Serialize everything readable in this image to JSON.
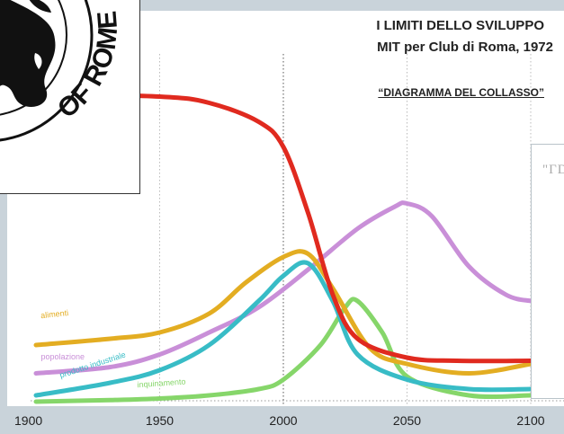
{
  "header": {
    "title": "I LIMITI DELLO SVILUPPO",
    "subtitle": "MIT per Club di Roma, 1972",
    "diagram_title": "“DIAGRAMMA DEL COLLASSO”"
  },
  "logo": {
    "text": "OF ROME"
  },
  "inset": {
    "text": "\"ΓD"
  },
  "colors": {
    "grafico_bg": "#ffffff",
    "risorse": "#e02a1f",
    "popolazione": "#c98fd8",
    "alimenti": "#e3ad22",
    "produzione": "#38bcc6",
    "inquinamento": "#86d66a"
  },
  "chart_data": {
    "type": "line",
    "title": "“DIAGRAMMA DEL COLLASSO”",
    "xlabel": "",
    "ylabel": "",
    "xlim": [
      1900,
      2100
    ],
    "ylim": [
      0,
      1
    ],
    "xticks": [
      1900,
      1950,
      2000,
      2050,
      2100
    ],
    "xtick_labels": [
      "1900",
      "1950",
      "2000",
      "2050",
      "2100"
    ],
    "grid": "vertical dotted at each tick",
    "series": [
      {
        "name": "",
        "color": "#e02a1f",
        "x": [
          1900,
          1950,
          1970,
          1990,
          2000,
          2010,
          2020,
          2030,
          2050,
          2070,
          2100
        ],
        "y": [
          0.96,
          0.95,
          0.93,
          0.87,
          0.79,
          0.58,
          0.32,
          0.18,
          0.12,
          0.11,
          0.11
        ]
      },
      {
        "name": "popolazione",
        "color": "#c98fd8",
        "x": [
          1900,
          1930,
          1950,
          1970,
          1990,
          2010,
          2030,
          2045,
          2050,
          2060,
          2075,
          2090,
          2100
        ],
        "y": [
          0.07,
          0.09,
          0.13,
          0.2,
          0.28,
          0.4,
          0.53,
          0.6,
          0.61,
          0.57,
          0.41,
          0.32,
          0.3
        ]
      },
      {
        "name": "alimenti",
        "color": "#e3ad22",
        "x": [
          1900,
          1930,
          1950,
          1970,
          1985,
          2000,
          2010,
          2020,
          2035,
          2050,
          2075,
          2100
        ],
        "y": [
          0.16,
          0.18,
          0.2,
          0.26,
          0.36,
          0.44,
          0.45,
          0.34,
          0.15,
          0.1,
          0.07,
          0.1
        ]
      },
      {
        "name": "prodotto industriale",
        "color": "#38bcc6",
        "x": [
          1900,
          1930,
          1950,
          1970,
          1990,
          2000,
          2010,
          2020,
          2030,
          2050,
          2075,
          2100
        ],
        "y": [
          0.0,
          0.04,
          0.08,
          0.16,
          0.3,
          0.38,
          0.42,
          0.3,
          0.13,
          0.05,
          0.02,
          0.02
        ]
      },
      {
        "name": "inquinamento",
        "color": "#86d66a",
        "x": [
          1900,
          1930,
          1950,
          1970,
          1990,
          2000,
          2015,
          2025,
          2030,
          2040,
          2050,
          2075,
          2100
        ],
        "y": [
          -0.02,
          -0.015,
          -0.01,
          0.0,
          0.02,
          0.05,
          0.16,
          0.28,
          0.3,
          0.2,
          0.06,
          0.0,
          0.0
        ]
      }
    ]
  }
}
